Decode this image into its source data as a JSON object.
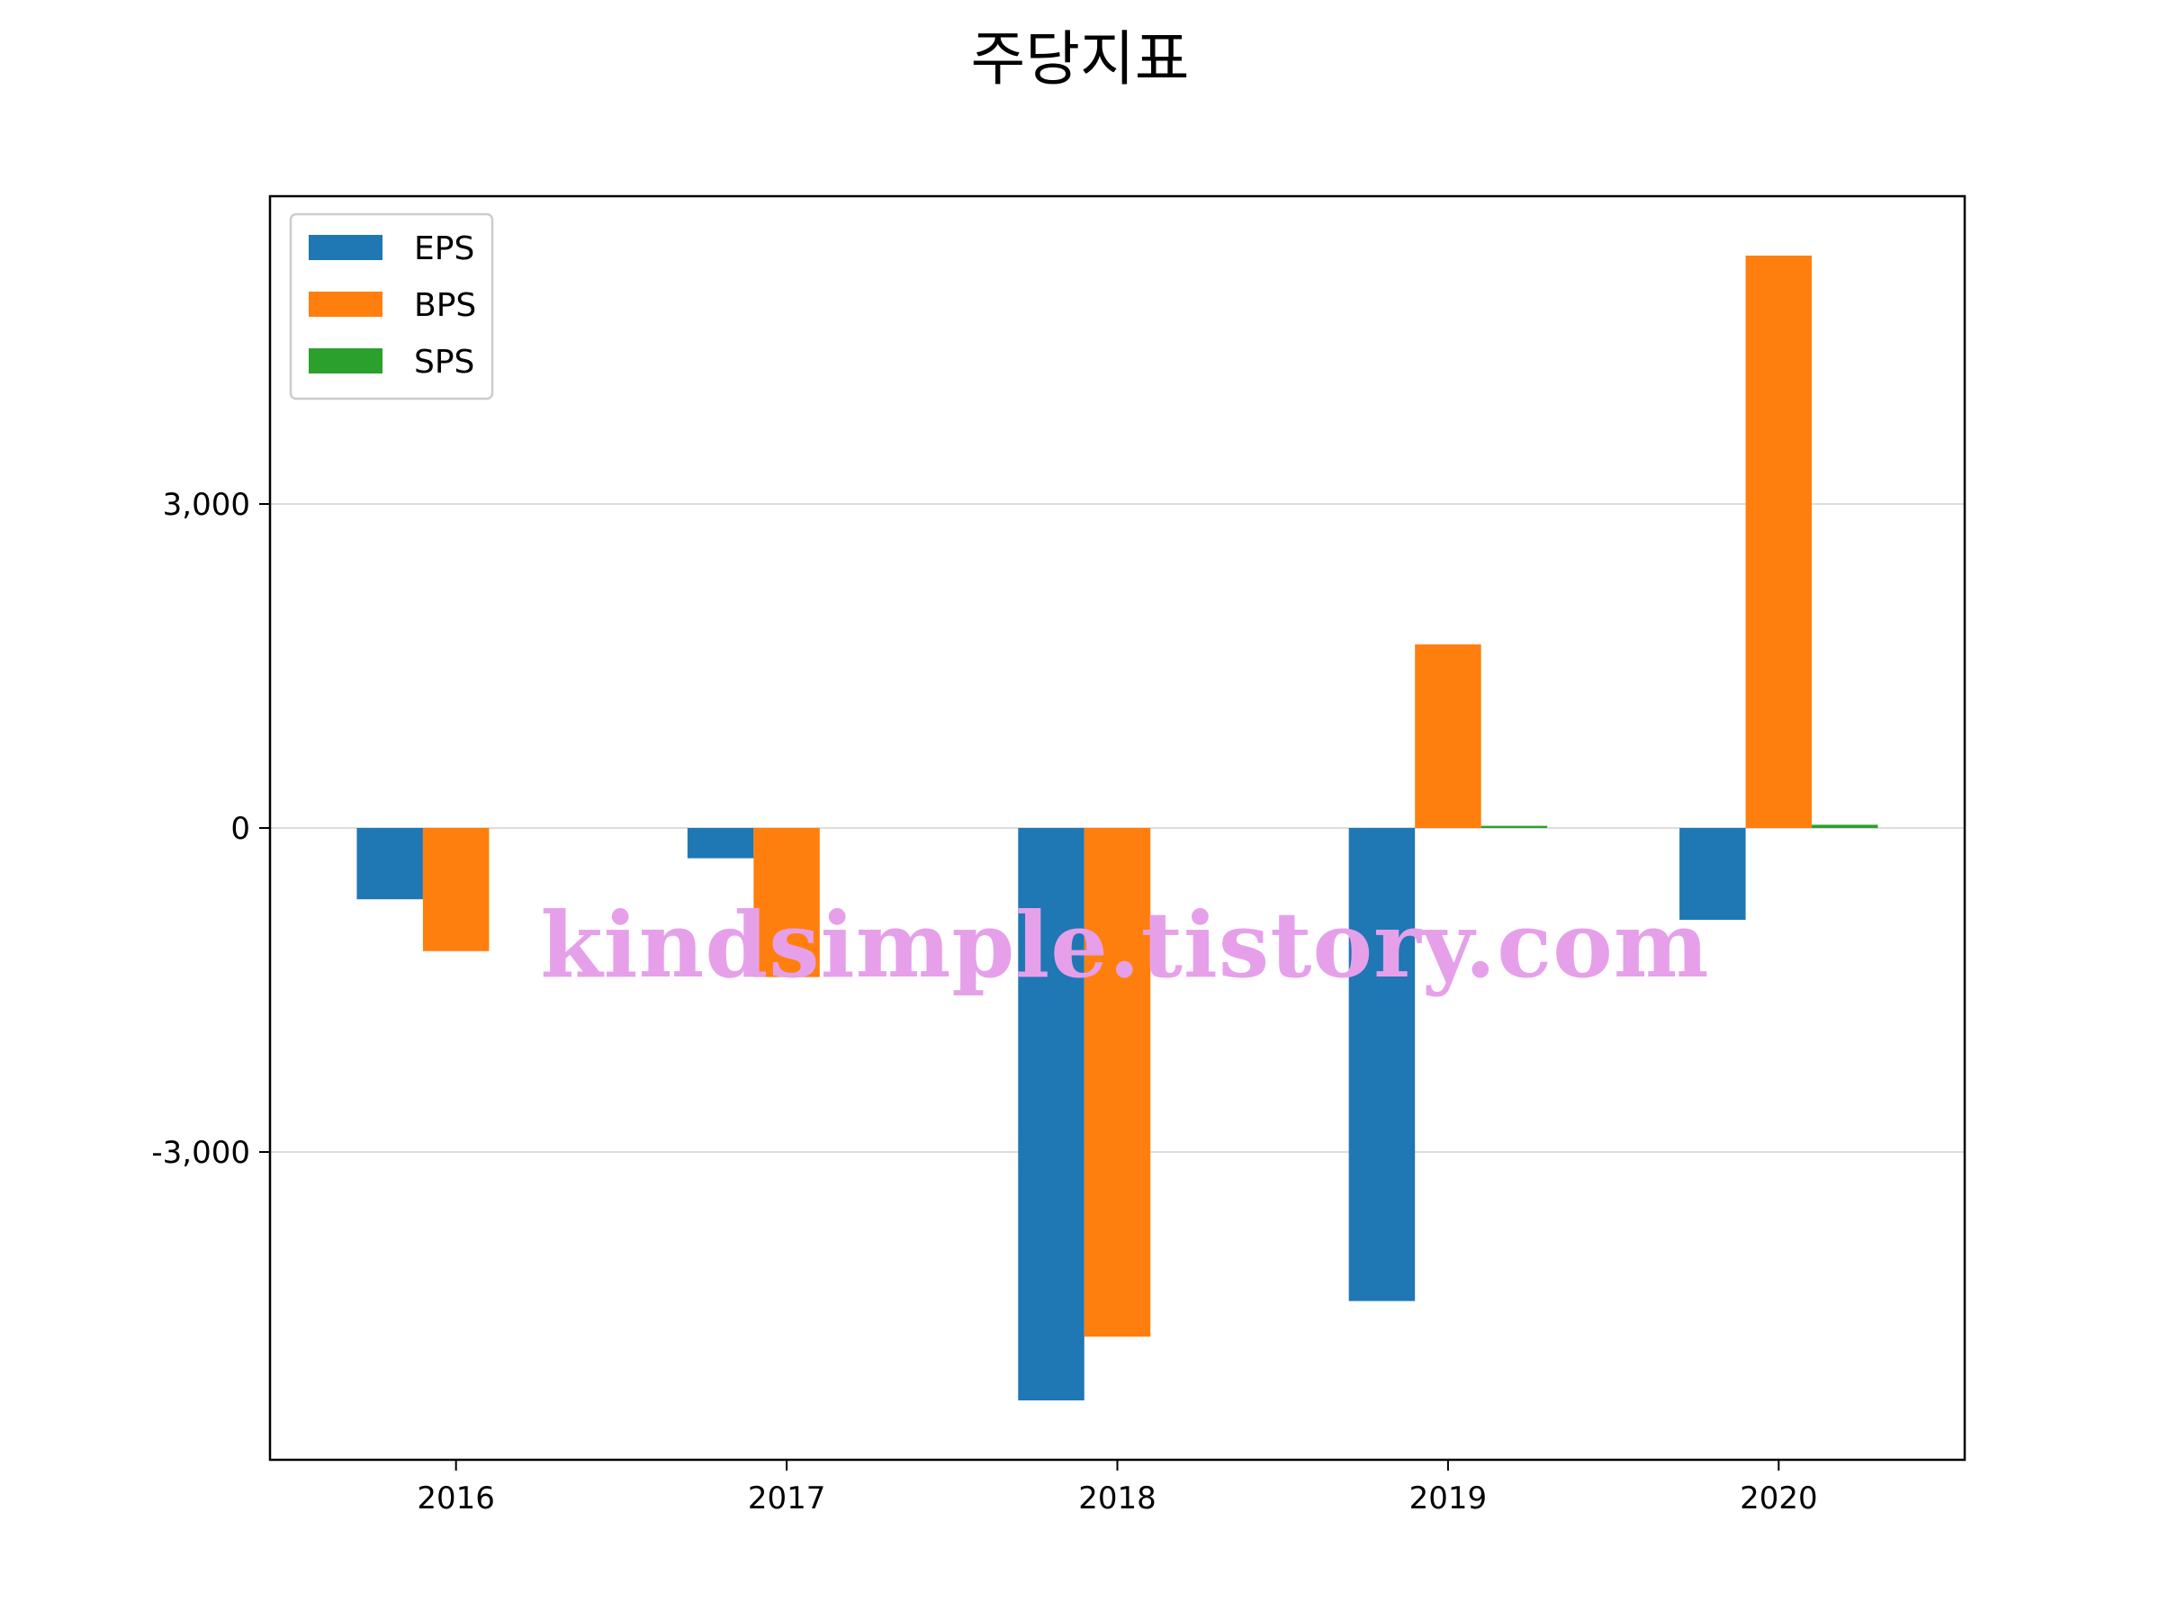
{
  "chart_data": {
    "type": "bar",
    "title": "주당지표",
    "xlabel": "",
    "ylabel": "",
    "categories": [
      "2016",
      "2017",
      "2018",
      "2019",
      "2020"
    ],
    "series": [
      {
        "name": "EPS",
        "color": "#1f77b4",
        "values": [
          -660,
          -280,
          -5300,
          -4380,
          -850
        ]
      },
      {
        "name": "BPS",
        "color": "#ff7f0e",
        "values": [
          -1140,
          -1380,
          -4710,
          1700,
          5300
        ]
      },
      {
        "name": "SPS",
        "color": "#2ca02c",
        "values": [
          0,
          0,
          0,
          20,
          30
        ]
      }
    ],
    "ylim": [
      -5850,
      5850
    ],
    "yticks": [
      -3000,
      0,
      3000
    ],
    "ytick_labels": [
      "-3,000",
      "0",
      "3,000"
    ],
    "grid": "y",
    "legend": "top-left"
  },
  "watermark": {
    "text": "kindsimple.tistory.com",
    "color": "#e6a0ea"
  }
}
